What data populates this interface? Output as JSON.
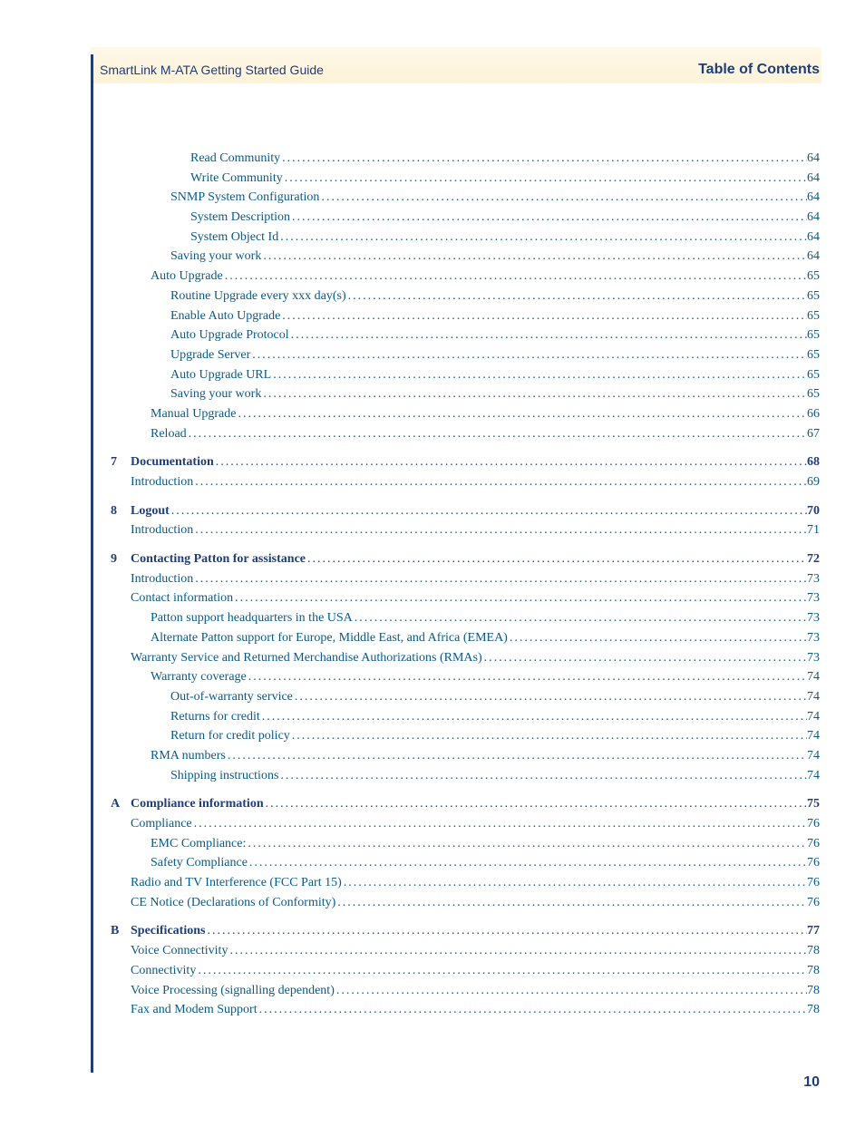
{
  "header": {
    "guide_title": "SmartLink M-ATA Getting Started Guide",
    "section_title": "Table of Contents"
  },
  "page_number": "10",
  "colors": {
    "link": "#0a5a8a",
    "heading": "#1f3e7a",
    "gradient_top": "#fff8e8",
    "gradient_bottom": "#fdf3d8",
    "background": "#ffffff"
  },
  "typography": {
    "body_font": "Georgia, serif",
    "heading_font": "Trebuchet MS, Arial, sans-serif",
    "body_size_pt": 10.5,
    "heading_size_pt": 12
  },
  "toc": [
    {
      "indent": 3,
      "label": "Read Community",
      "page": "64",
      "chapter": false,
      "num": ""
    },
    {
      "indent": 3,
      "label": "Write Community",
      "page": "64",
      "chapter": false,
      "num": ""
    },
    {
      "indent": 2,
      "label": "SNMP System Configuration",
      "page": "64",
      "chapter": false,
      "num": ""
    },
    {
      "indent": 3,
      "label": "System Description",
      "page": "64",
      "chapter": false,
      "num": ""
    },
    {
      "indent": 3,
      "label": "System Object Id",
      "page": "64",
      "chapter": false,
      "num": ""
    },
    {
      "indent": 2,
      "label": "Saving your work",
      "page": "64",
      "chapter": false,
      "num": ""
    },
    {
      "indent": 1,
      "label": "Auto Upgrade",
      "page": "65",
      "chapter": false,
      "num": ""
    },
    {
      "indent": 2,
      "label": "Routine Upgrade every xxx day(s)",
      "page": "65",
      "chapter": false,
      "num": ""
    },
    {
      "indent": 2,
      "label": "Enable Auto Upgrade",
      "page": "65",
      "chapter": false,
      "num": ""
    },
    {
      "indent": 2,
      "label": "Auto Upgrade Protocol",
      "page": "65",
      "chapter": false,
      "num": ""
    },
    {
      "indent": 2,
      "label": "Upgrade Server",
      "page": "65",
      "chapter": false,
      "num": ""
    },
    {
      "indent": 2,
      "label": "Auto Upgrade URL",
      "page": "65",
      "chapter": false,
      "num": ""
    },
    {
      "indent": 2,
      "label": "Saving your work",
      "page": "65",
      "chapter": false,
      "num": ""
    },
    {
      "indent": 1,
      "label": "Manual Upgrade",
      "page": "66",
      "chapter": false,
      "num": ""
    },
    {
      "indent": 1,
      "label": "Reload",
      "page": "67",
      "chapter": false,
      "num": ""
    },
    {
      "indent": 0,
      "label": "Documentation",
      "page": "68",
      "chapter": true,
      "num": "7"
    },
    {
      "indent": 0,
      "label": "Introduction",
      "page": "69",
      "chapter": false,
      "num": ""
    },
    {
      "indent": 0,
      "label": "Logout",
      "page": "70",
      "chapter": true,
      "num": "8"
    },
    {
      "indent": 0,
      "label": "Introduction",
      "page": "71",
      "chapter": false,
      "num": ""
    },
    {
      "indent": 0,
      "label": "Contacting Patton for assistance",
      "page": "72",
      "chapter": true,
      "num": "9"
    },
    {
      "indent": 0,
      "label": "Introduction",
      "page": "73",
      "chapter": false,
      "num": ""
    },
    {
      "indent": 0,
      "label": "Contact information",
      "page": "73",
      "chapter": false,
      "num": ""
    },
    {
      "indent": 1,
      "label": "Patton support headquarters in the USA",
      "page": "73",
      "chapter": false,
      "num": ""
    },
    {
      "indent": 1,
      "label": "Alternate Patton support for Europe, Middle East, and Africa (EMEA)",
      "page": "73",
      "chapter": false,
      "num": ""
    },
    {
      "indent": 0,
      "label": "Warranty Service and Returned Merchandise Authorizations (RMAs)",
      "page": "73",
      "chapter": false,
      "num": ""
    },
    {
      "indent": 1,
      "label": "Warranty coverage",
      "page": "74",
      "chapter": false,
      "num": ""
    },
    {
      "indent": 2,
      "label": "Out-of-warranty service",
      "page": "74",
      "chapter": false,
      "num": ""
    },
    {
      "indent": 2,
      "label": "Returns for credit",
      "page": "74",
      "chapter": false,
      "num": ""
    },
    {
      "indent": 2,
      "label": "Return for credit policy",
      "page": "74",
      "chapter": false,
      "num": ""
    },
    {
      "indent": 1,
      "label": "RMA numbers",
      "page": "74",
      "chapter": false,
      "num": ""
    },
    {
      "indent": 2,
      "label": "Shipping instructions",
      "page": "74",
      "chapter": false,
      "num": ""
    },
    {
      "indent": 0,
      "label": "Compliance information",
      "page": "75",
      "chapter": true,
      "num": "A"
    },
    {
      "indent": 0,
      "label": "Compliance",
      "page": "76",
      "chapter": false,
      "num": ""
    },
    {
      "indent": 1,
      "label": "EMC Compliance:",
      "page": "76",
      "chapter": false,
      "num": ""
    },
    {
      "indent": 1,
      "label": "Safety Compliance",
      "page": "76",
      "chapter": false,
      "num": ""
    },
    {
      "indent": 0,
      "label": "Radio and TV Interference (FCC Part 15)",
      "page": "76",
      "chapter": false,
      "num": ""
    },
    {
      "indent": 0,
      "label": "CE Notice (Declarations of Conformity)",
      "page": "76",
      "chapter": false,
      "num": ""
    },
    {
      "indent": 0,
      "label": "Specifications",
      "page": "77",
      "chapter": true,
      "num": "B"
    },
    {
      "indent": 0,
      "label": "Voice Connectivity",
      "page": "78",
      "chapter": false,
      "num": ""
    },
    {
      "indent": 0,
      "label": "Connectivity",
      "page": "78",
      "chapter": false,
      "num": ""
    },
    {
      "indent": 0,
      "label": "Voice Processing (signalling dependent)",
      "page": "78",
      "chapter": false,
      "num": ""
    },
    {
      "indent": 0,
      "label": "Fax and Modem Support",
      "page": "78",
      "chapter": false,
      "num": ""
    }
  ]
}
